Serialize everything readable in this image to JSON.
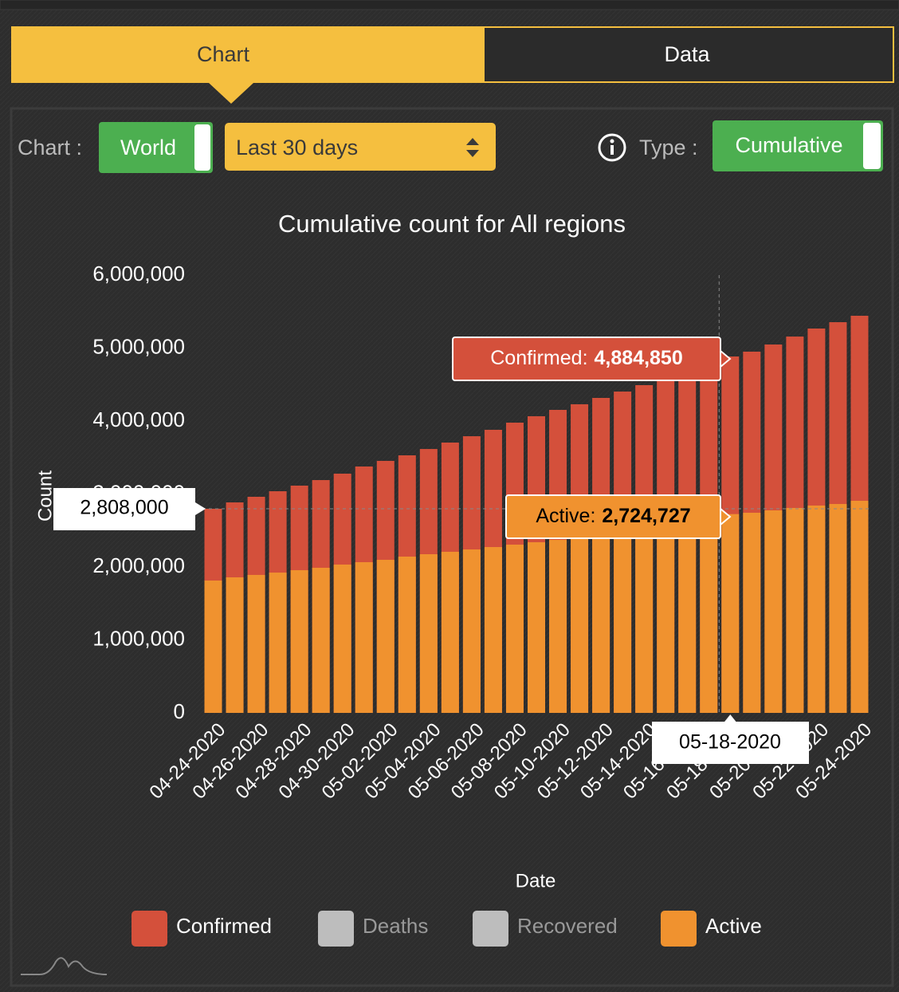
{
  "tabs": [
    "Chart",
    "Data"
  ],
  "controls": {
    "chart_label": "Chart :",
    "region": "World",
    "range": "Last 30 days",
    "type_label": "Type :",
    "type": "Cumulative"
  },
  "chart_data": {
    "type": "bar",
    "overlap": true,
    "title": "Cumulative count for All regions",
    "y_label": "Count",
    "x_label": "Date",
    "categories": [
      "04-24-2020",
      null,
      "04-26-2020",
      null,
      "04-28-2020",
      null,
      "04-30-2020",
      null,
      "05-02-2020",
      null,
      "05-04-2020",
      null,
      "05-06-2020",
      null,
      "05-08-2020",
      null,
      "05-10-2020",
      null,
      "05-12-2020",
      null,
      "05-14-2020",
      null,
      "05-16-2020",
      null,
      "05-18-2020",
      null,
      "05-20-2020",
      null,
      "05-22-2020",
      null,
      "05-24-2020"
    ],
    "series": [
      {
        "name": "Confirmed",
        "color": "#d4503b",
        "values": [
          2798000,
          2885000,
          2962000,
          3038000,
          3115000,
          3191000,
          3279000,
          3377000,
          3454000,
          3530000,
          3617000,
          3705000,
          3792000,
          3880000,
          3978000,
          4066000,
          4153000,
          4230000,
          4317000,
          4404000,
          4492000,
          4568000,
          4667000,
          4765000,
          4884850,
          4951000,
          5049000,
          5158000,
          5268000,
          5355000,
          5443000
        ]
      },
      {
        "name": "Active",
        "color": "#f0922f",
        "values": [
          1814000,
          1858000,
          1891000,
          1923000,
          1956000,
          1989000,
          2033000,
          2066000,
          2098000,
          2142000,
          2175000,
          2208000,
          2240000,
          2273000,
          2306000,
          2339000,
          2372000,
          2404000,
          2437000,
          2470000,
          2503000,
          2557000,
          2601000,
          2645000,
          2724727,
          2743000,
          2776000,
          2809000,
          2842000,
          2863000,
          2907000
        ]
      }
    ],
    "hidden_series": [
      {
        "name": "Deaths",
        "color": "#bdbdbd"
      },
      {
        "name": "Recovered",
        "color": "#bdbdbd"
      }
    ],
    "ylim": [
      0,
      6000000
    ],
    "yticks": [
      0,
      {
        "value": 1000000,
        "label": "1,000,000"
      },
      {
        "value": 2000000,
        "label": "2,000,000"
      },
      {
        "value": 3000000,
        "label": "3,000,000"
      },
      {
        "value": 4000000,
        "label": "4,000,000"
      },
      {
        "value": 5000000,
        "label": "5,000,000"
      },
      {
        "value": 6000000,
        "label": "6,000,000"
      }
    ],
    "cursor": {
      "index": 24,
      "x_label": "05-18-2020",
      "y_label": "2,808,000",
      "tooltips": [
        {
          "series": 0,
          "label": "Confirmed:",
          "value": "4,884,850"
        },
        {
          "series": 1,
          "label": "Active:",
          "value": "2,724,727"
        }
      ]
    }
  }
}
